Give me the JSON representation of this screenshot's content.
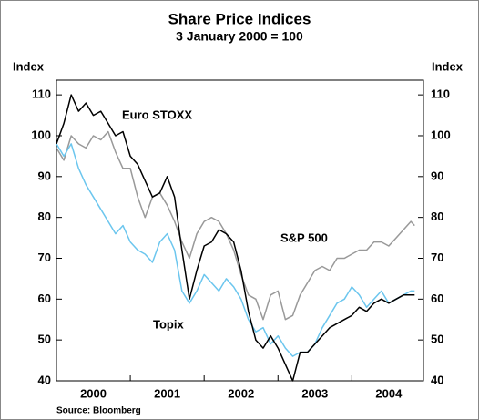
{
  "chart_data": {
    "type": "line",
    "title": "Share Price Indices",
    "subtitle": "3 January 2000 = 100",
    "y_label": "Index",
    "source": "Source: Bloomberg",
    "annotations": [
      "Euro STOXX",
      "S&P 500",
      "Topix"
    ],
    "x": [
      2000,
      2000.1,
      2000.2,
      2000.3,
      2000.4,
      2000.5,
      2000.6,
      2000.7,
      2000.8,
      2000.9,
      2001,
      2001.1,
      2001.2,
      2001.3,
      2001.4,
      2001.5,
      2001.6,
      2001.7,
      2001.8,
      2001.9,
      2002,
      2002.1,
      2002.2,
      2002.3,
      2002.4,
      2002.5,
      2002.6,
      2002.7,
      2002.8,
      2002.9,
      2003,
      2003.1,
      2003.2,
      2003.3,
      2003.4,
      2003.5,
      2003.6,
      2003.7,
      2003.8,
      2003.9,
      2004,
      2004.1,
      2004.2,
      2004.3,
      2004.4,
      2004.5,
      2004.6,
      2004.7,
      2004.8,
      2004.85
    ],
    "series": [
      {
        "name": "Euro STOXX",
        "color": "#000000",
        "values": [
          98,
          103,
          110,
          106,
          108,
          105,
          106,
          103,
          100,
          101,
          95,
          93,
          89,
          85,
          86,
          90,
          85,
          72,
          60,
          67,
          73,
          74,
          77,
          76,
          74,
          67,
          57,
          50,
          48,
          51,
          48,
          44,
          40,
          47,
          47,
          49,
          51,
          53,
          54,
          55,
          56,
          58,
          57,
          59,
          60,
          59,
          60,
          61,
          61,
          61
        ]
      },
      {
        "name": "S&P 500",
        "color": "#999999",
        "values": [
          97,
          94,
          100,
          98,
          97,
          100,
          99,
          101,
          96,
          92,
          92,
          85,
          80,
          85,
          86,
          83,
          79,
          74,
          70,
          76,
          79,
          80,
          79,
          76,
          72,
          66,
          61,
          60,
          55,
          61,
          62,
          55,
          56,
          61,
          64,
          67,
          68,
          67,
          70,
          70,
          71,
          72,
          72,
          74,
          74,
          73,
          75,
          77,
          79,
          78
        ]
      },
      {
        "name": "Topix",
        "color": "#6cc6ee",
        "values": [
          98,
          95,
          98,
          92,
          88,
          85,
          82,
          79,
          76,
          78,
          74,
          72,
          71,
          69,
          74,
          76,
          72,
          62,
          59,
          62,
          66,
          64,
          62,
          65,
          63,
          60,
          55,
          52,
          53,
          49,
          51,
          48,
          46,
          47,
          47,
          49,
          53,
          56,
          59,
          60,
          63,
          61,
          58,
          60,
          62,
          59,
          60,
          61,
          62,
          62
        ]
      }
    ],
    "xlim": [
      2000,
      2004.97
    ],
    "xticks": [
      {
        "value": 2000.5,
        "label": "2000"
      },
      {
        "value": 2001.5,
        "label": "2001"
      },
      {
        "value": 2002.5,
        "label": "2002"
      },
      {
        "value": 2003.5,
        "label": "2003"
      },
      {
        "value": 2004.5,
        "label": "2004"
      }
    ],
    "xminor_ticks": [
      2001,
      2002,
      2003,
      2004
    ],
    "ylim": [
      40,
      113.6
    ],
    "yticks": [
      40,
      50,
      60,
      70,
      80,
      90,
      100,
      110
    ]
  }
}
